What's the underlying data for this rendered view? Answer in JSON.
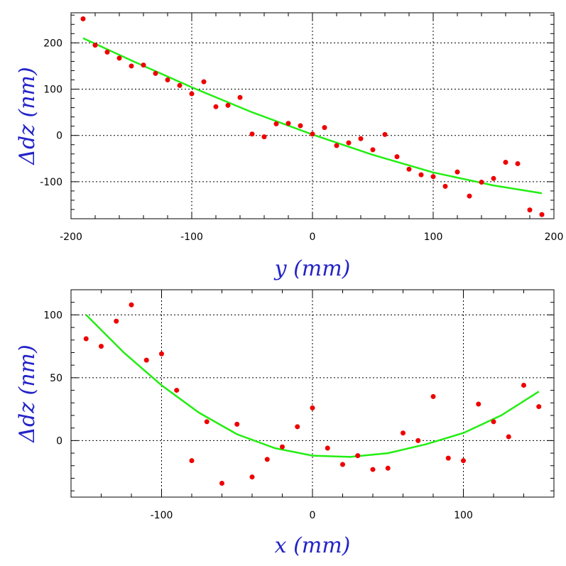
{
  "chart_data": [
    {
      "type": "scatter",
      "xlabel": "y (mm)",
      "ylabel": "Δdz (nm)",
      "xlim": [
        -200,
        200
      ],
      "ylim": [
        -180,
        265
      ],
      "xticks": [
        -200,
        -100,
        0,
        100,
        200
      ],
      "yticks": [
        -100,
        0,
        100,
        200
      ],
      "xtick_labels": [
        "-200",
        "-100",
        "0",
        "100",
        "200"
      ],
      "ytick_labels": [
        "-100",
        "0",
        "100",
        "200"
      ],
      "xminor_step": 20,
      "yminor_step": 20,
      "grid": true,
      "series": [
        {
          "kind": "points",
          "color": "#ee0000",
          "x": [
            -190,
            -180,
            -170,
            -160,
            -150,
            -140,
            -130,
            -120,
            -110,
            -100,
            -90,
            -80,
            -70,
            -60,
            -50,
            -40,
            -30,
            -20,
            -10,
            0,
            10,
            20,
            30,
            40,
            50,
            60,
            70,
            80,
            90,
            100,
            110,
            120,
            130,
            140,
            150,
            160,
            170,
            180,
            190
          ],
          "y": [
            252,
            195,
            180,
            167,
            150,
            152,
            134,
            120,
            108,
            90,
            116,
            62,
            65,
            82,
            3,
            -3,
            25,
            26,
            21,
            3,
            17,
            -22,
            -16,
            -7,
            -31,
            2,
            -46,
            -73,
            -85,
            -89,
            -110,
            -79,
            -131,
            -101,
            -93,
            -58,
            -61,
            -161,
            -171
          ]
        },
        {
          "kind": "line",
          "color": "#22ee11",
          "x": [
            -190,
            -150,
            -100,
            -50,
            0,
            50,
            100,
            150,
            190
          ],
          "y": [
            210,
            162,
            104,
            50,
            2,
            -42,
            -80,
            -108,
            -125
          ]
        }
      ]
    },
    {
      "type": "scatter",
      "xlabel": "x (mm)",
      "ylabel": "Δdz (nm)",
      "xlim": [
        -160,
        160
      ],
      "ylim": [
        -45,
        120
      ],
      "xticks": [
        -100,
        0,
        100
      ],
      "yticks": [
        0,
        50,
        100
      ],
      "xtick_labels": [
        "-100",
        "0",
        "100"
      ],
      "ytick_labels": [
        "0",
        "50",
        "100"
      ],
      "xminor_step": 20,
      "yminor_step": 10,
      "grid": true,
      "series": [
        {
          "kind": "points",
          "color": "#ee0000",
          "x": [
            -150,
            -140,
            -130,
            -120,
            -110,
            -100,
            -90,
            -80,
            -70,
            -60,
            -50,
            -40,
            -30,
            -20,
            -10,
            0,
            10,
            20,
            30,
            40,
            50,
            60,
            70,
            80,
            90,
            100,
            110,
            120,
            130,
            140,
            150
          ],
          "y": [
            81,
            75,
            95,
            108,
            64,
            69,
            40,
            -16,
            15,
            -34,
            13,
            -29,
            -15,
            -5,
            11,
            26,
            -6,
            -19,
            -12,
            -23,
            -22,
            6,
            0,
            35,
            -14,
            -16,
            29,
            15,
            3,
            44,
            27
          ]
        },
        {
          "kind": "line",
          "color": "#22ee11",
          "x": [
            -150,
            -125,
            -100,
            -75,
            -50,
            -25,
            0,
            25,
            50,
            75,
            100,
            125,
            150
          ],
          "y": [
            100,
            70,
            44,
            22,
            5,
            -6,
            -12,
            -13,
            -10,
            -3,
            6,
            20,
            39
          ]
        }
      ]
    }
  ]
}
